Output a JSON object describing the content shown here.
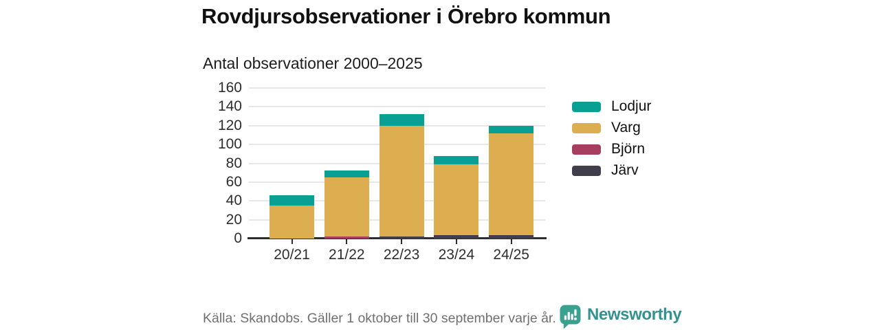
{
  "title": "Rovdjursobservationer i Örebro kommun",
  "subtitle": "Antal observationer 2000–2025",
  "chart_data": {
    "type": "bar",
    "stacked": true,
    "title": "Rovdjursobservationer i Örebro kommun",
    "subtitle": "Antal observationer 2000–2025",
    "categories": [
      "20/21",
      "21/22",
      "22/23",
      "23/24",
      "24/25"
    ],
    "series": [
      {
        "name": "Lodjur",
        "color": "#09a094",
        "values": [
          11,
          7,
          12,
          9,
          8
        ]
      },
      {
        "name": "Varg",
        "color": "#dcae4f",
        "values": [
          35,
          63,
          118,
          75,
          108
        ]
      },
      {
        "name": "Björn",
        "color": "#a63e5f",
        "values": [
          0,
          2,
          0,
          0,
          0
        ]
      },
      {
        "name": "Järv",
        "color": "#403e4b",
        "values": [
          0,
          0,
          2,
          4,
          4
        ]
      }
    ],
    "totals": [
      46,
      72,
      132,
      88,
      120
    ],
    "xlabel": "",
    "ylabel": "",
    "ylim": [
      0,
      160
    ],
    "y_ticks": [
      0,
      20,
      40,
      60,
      80,
      100,
      120,
      140,
      160
    ],
    "grid": true,
    "legend_position": "right"
  },
  "footer": {
    "source": "Källa: Skandobs. Gäller 1 oktober till 30 september varje år.",
    "brand": "Newsworthy"
  },
  "colors": {
    "lodjur": "#09a094",
    "varg": "#dcae4f",
    "bjorn": "#a63e5f",
    "jarv": "#403e4b",
    "grid": "#e7e7e7",
    "axis": "#2d2d2d",
    "brand_teal": "#33918f",
    "footer_gray": "#6f6f6f"
  }
}
